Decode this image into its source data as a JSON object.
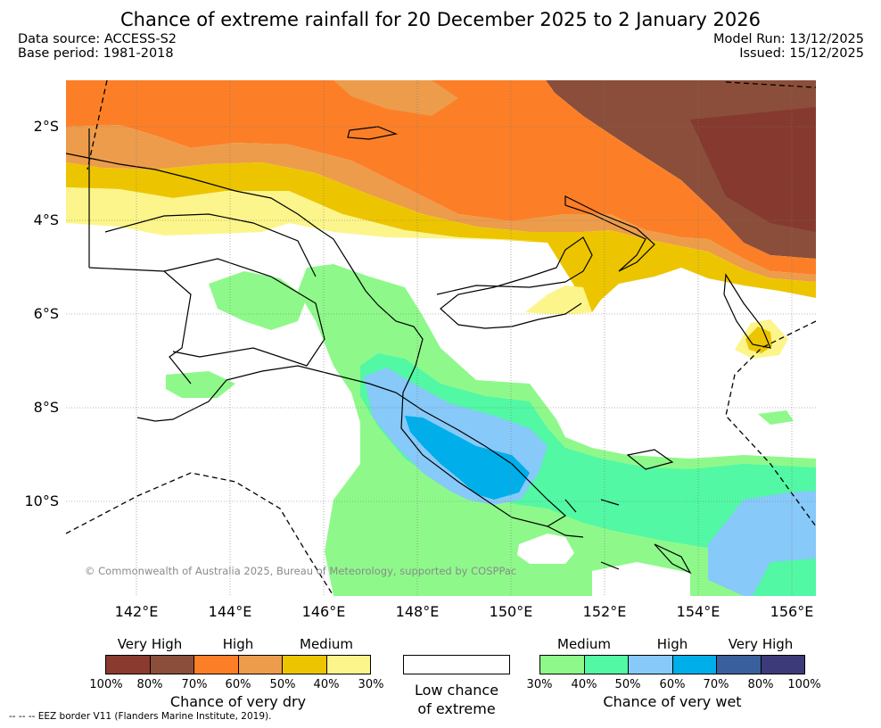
{
  "title": "Chance of extreme rainfall for 20 December 2025 to 2 January 2026",
  "info": {
    "data_source": "Data source: ACCESS-S2",
    "base_period": "Base period: 1981-2018",
    "model_run": "Model Run: 13/12/2025",
    "issued": "Issued: 15/12/2025"
  },
  "map": {
    "lat_labels": [
      "2°S",
      "4°S",
      "6°S",
      "8°S",
      "10°S"
    ],
    "lon_labels": [
      "142°E",
      "144°E",
      "146°E",
      "148°E",
      "150°E",
      "152°E",
      "154°E",
      "156°E"
    ],
    "copyright": "© Commonwealth of Australia 2025, Bureau of Meteorology, supported by COSPPac"
  },
  "legend": {
    "dry": {
      "levels": [
        "Very High",
        "High",
        "Medium"
      ],
      "ticks": [
        "100%",
        "80%",
        "70%",
        "60%",
        "50%",
        "40%",
        "30%"
      ],
      "caption": "Chance of very dry",
      "colors": [
        "#8b3a30",
        "#8b4e3a",
        "#fc7f27",
        "#ec9c4b",
        "#ecc500",
        "#fcf58b"
      ]
    },
    "low": {
      "caption_line1": "Low chance",
      "caption_line2": "of extreme"
    },
    "wet": {
      "levels": [
        "Medium",
        "High",
        "Very High"
      ],
      "ticks": [
        "30%",
        "40%",
        "50%",
        "60%",
        "70%",
        "80%",
        "100%"
      ],
      "caption": "Chance of very wet",
      "colors": [
        "#8ef98a",
        "#52f8a4",
        "#87c9f8",
        "#00aeea",
        "#39609c",
        "#3d3a7a"
      ]
    }
  },
  "footer": "-- -- -- EEZ border V11 (Flanders Marine Institute, 2019)."
}
